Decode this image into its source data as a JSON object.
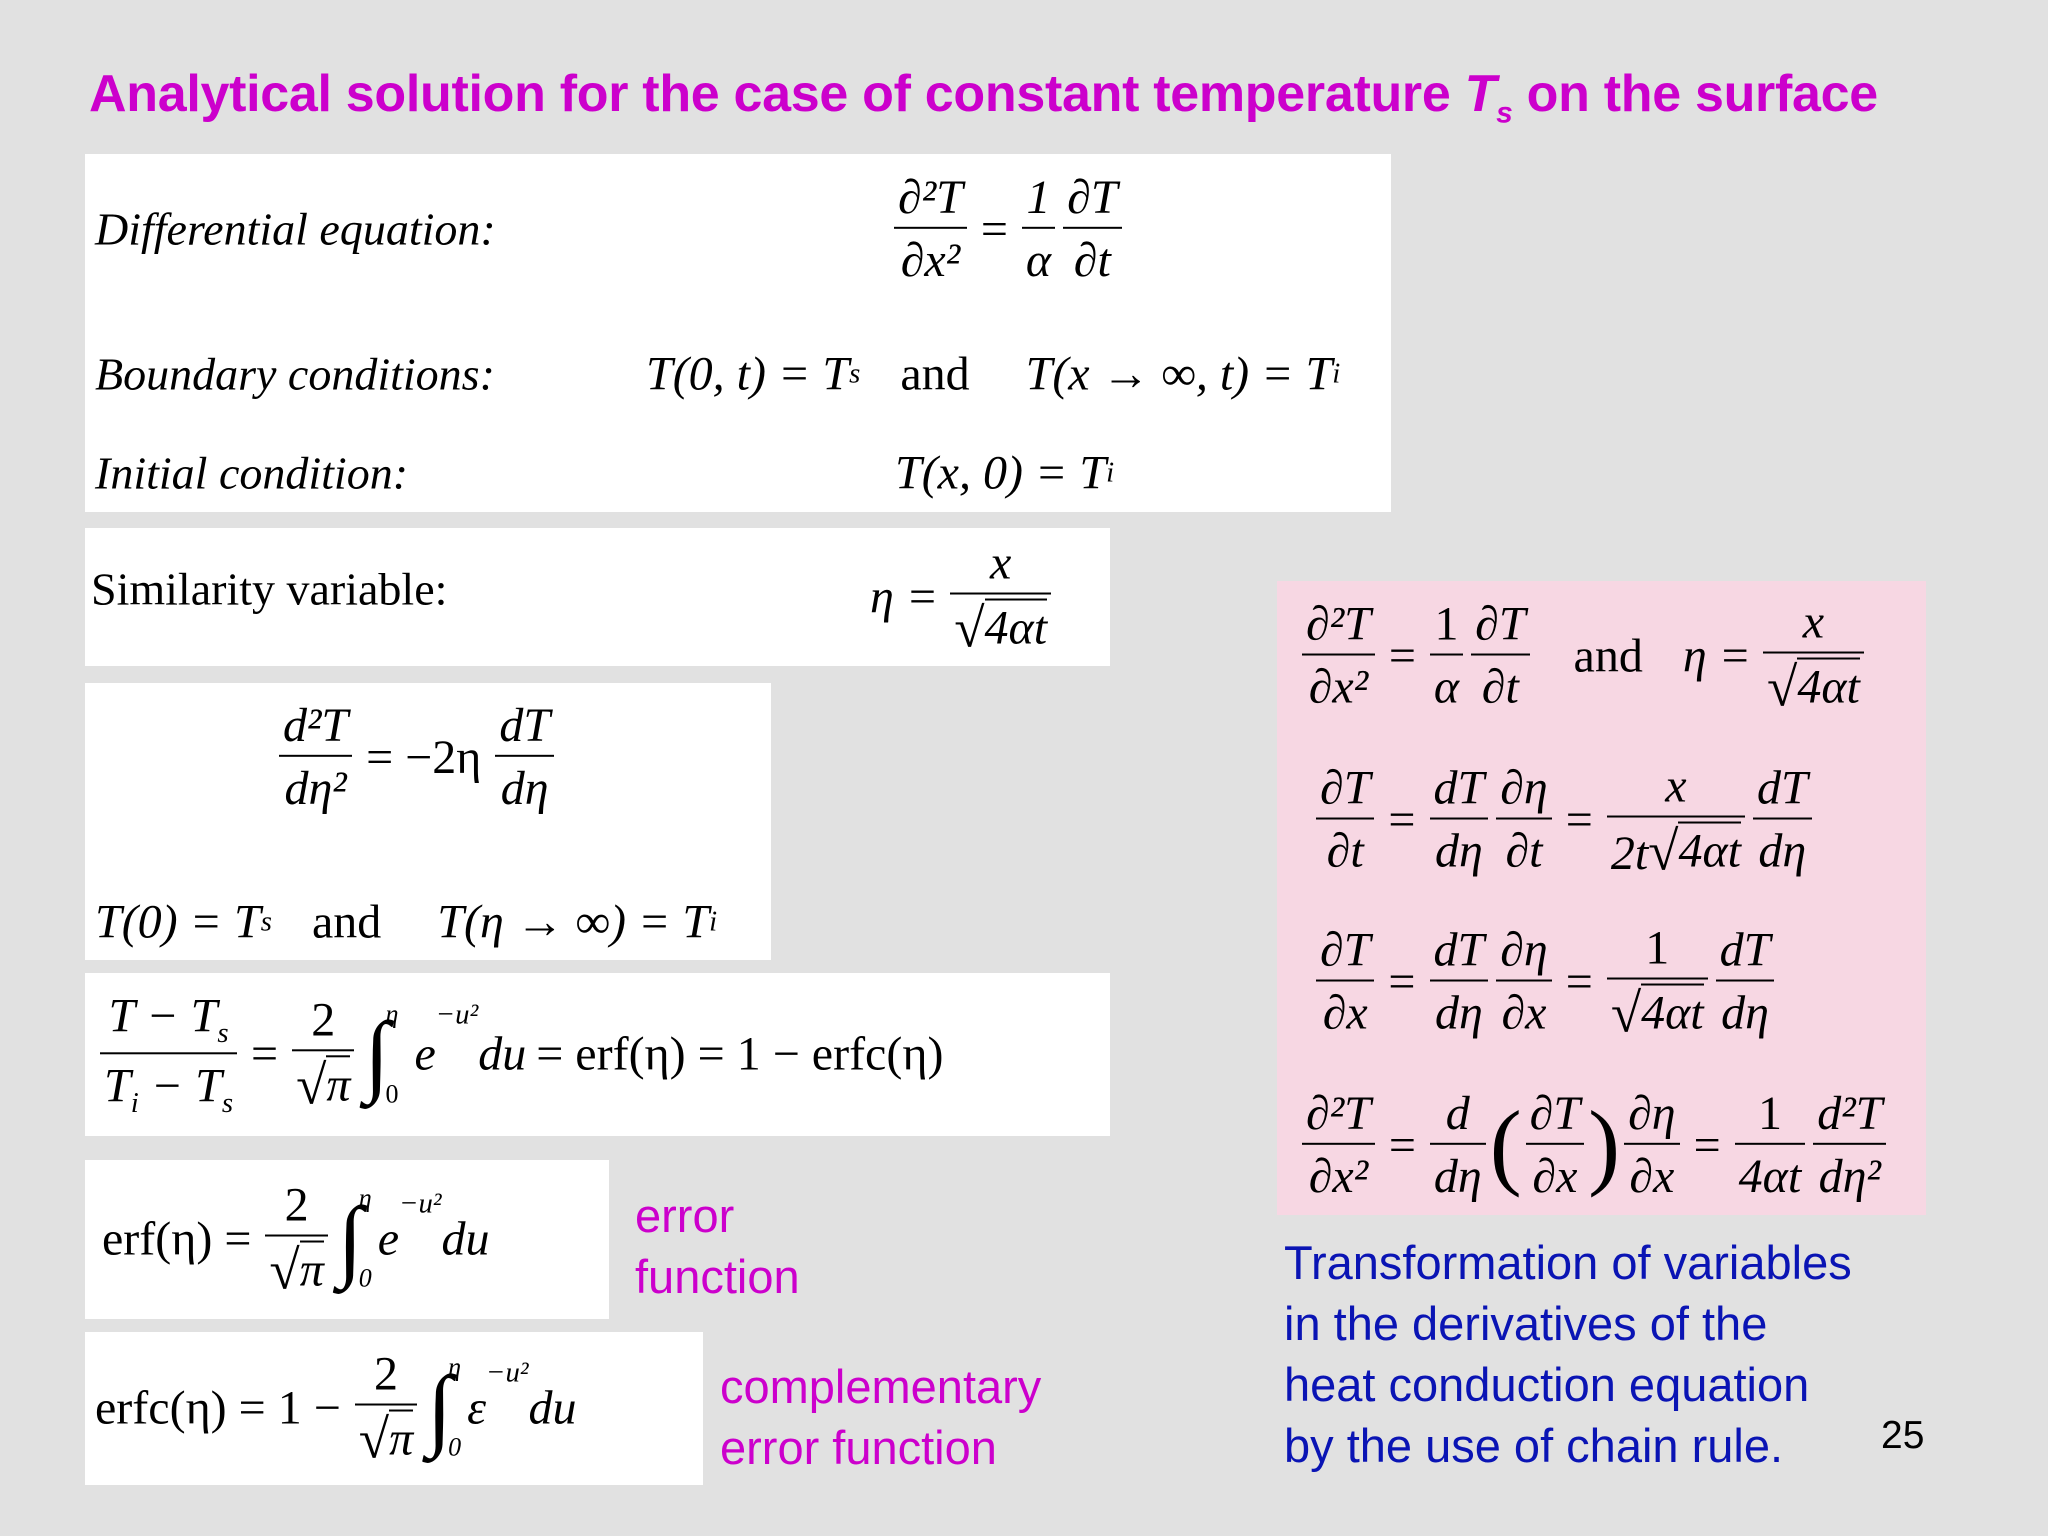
{
  "title": {
    "text": "Analytical solution for the case of constant temperature ",
    "var": "T",
    "sub": "s",
    "tail": " on the surface"
  },
  "box1": {
    "diff_label": "Differential equation:",
    "diff": {
      "n1": "∂²T",
      "d1": "∂x²",
      "eq": "=",
      "n2": "1",
      "d2": "α",
      "n3": "∂T",
      "d3": "∂t"
    },
    "bc_label": "Boundary conditions:",
    "bc1": "T(0, t) = T",
    "bc1_sub": "s",
    "bc_and": "and",
    "bc2": "T(x → ∞, t) = T",
    "bc2_sub": "i",
    "ic_label": "Initial condition:",
    "ic": "T(x, 0) = T",
    "ic_sub": "i"
  },
  "box2": {
    "label": "Similarity variable:",
    "lhs": "η =",
    "num": "x",
    "den": "4αt"
  },
  "box3": {
    "n1": "d²T",
    "d1": "dη²",
    "mid": "= −2η",
    "n2": "dT",
    "d2": "dη",
    "c1": "T(0) = T",
    "c1_sub": "s",
    "and": "and",
    "c2": "T(η → ∞) = T",
    "c2_sub": "i"
  },
  "box4": {
    "n1a": "T − T",
    "n1s": "s",
    "d1a": "T",
    "d1s": "i",
    "d1b": " − T",
    "d1c": "s",
    "eq": "=",
    "n2": "2",
    "d2": "π",
    "up": "η",
    "lo": "0",
    "e": "e",
    "exp": "−u²",
    "du": "du",
    "tail": "= erf(η) = 1 − erfc(η)"
  },
  "box5": {
    "lhs": "erf(η) =",
    "n": "2",
    "d": "π",
    "up": "η",
    "lo": "0",
    "e": "e",
    "exp": "−u²",
    "du": "du"
  },
  "box6": {
    "lhs": "erfc(η) = 1 −",
    "n": "2",
    "d": "π",
    "up": "η",
    "lo": "0",
    "e": "ε",
    "exp": "−u²",
    "du": "du"
  },
  "pink": {
    "r1": {
      "n1": "∂²T",
      "d1": "∂x²",
      "eq": "=",
      "n2": "1",
      "d2": "α",
      "n3": "∂T",
      "d3": "∂t",
      "and": "and",
      "eta": "η =",
      "n4": "x",
      "d4": "4αt"
    },
    "r2": {
      "n1": "∂T",
      "d1": "∂t",
      "eq1": "=",
      "n2": "dT",
      "d2": "dη",
      "n3": "∂η",
      "d3": "∂t",
      "eq2": "=",
      "n4": "x",
      "d4pre": "2t",
      "d4": "4αt",
      "n5": "dT",
      "d5": "dη"
    },
    "r3": {
      "n1": "∂T",
      "d1": "∂x",
      "eq1": "=",
      "n2": "dT",
      "d2": "dη",
      "n3": "∂η",
      "d3": "∂x",
      "eq2": "=",
      "n4": "1",
      "d4": "4αt",
      "n5": "dT",
      "d5": "dη"
    },
    "r4": {
      "n1": "∂²T",
      "d1": "∂x²",
      "eq1": "=",
      "n2": "d",
      "d2": "dη",
      "lp": "(",
      "n3": "∂T",
      "d3": "∂x",
      "rp": ")",
      "n4": "∂η",
      "d4": "∂x",
      "eq2": "=",
      "n5": "1",
      "d5": "4αt",
      "n6": "d²T",
      "d6": "dη²"
    }
  },
  "notes": {
    "erf": [
      "error",
      "function"
    ],
    "erfc": [
      "complementary",
      "error function"
    ],
    "transform": [
      "Transformation of variables",
      "in the derivatives of the",
      "heat conduction equation",
      "by the use of chain rule."
    ]
  },
  "page_number": "25",
  "colors": {
    "title": "#cc00cc",
    "blue_note": "#0a14b4",
    "pink_panel": "#f7d7e3",
    "background": "#e1e1e1"
  }
}
